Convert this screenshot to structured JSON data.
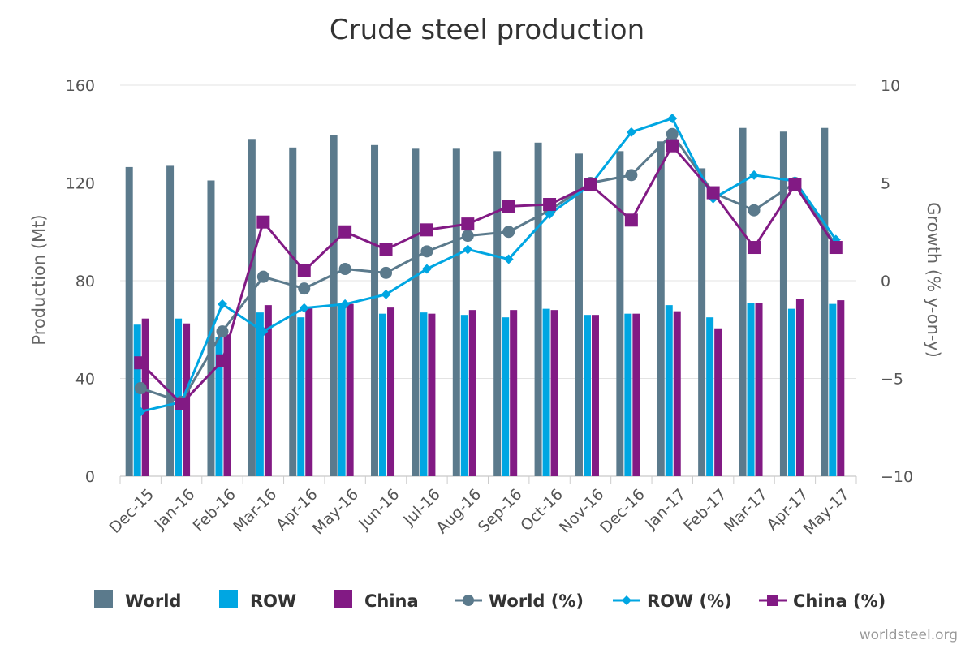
{
  "chart_data": {
    "type": "bar",
    "title": "Crude steel production",
    "ylabel": "Production (Mt)",
    "y2label": "Growth (% y-on-y)",
    "ylim": [
      0,
      160
    ],
    "y2lim": [
      -10,
      10
    ],
    "yticks": [
      "0",
      "40",
      "80",
      "120",
      "160"
    ],
    "y2ticks": [
      "−10",
      "−5",
      "0",
      "5",
      "10"
    ],
    "categories": [
      "Dec-15",
      "Jan-16",
      "Feb-16",
      "Mar-16",
      "Apr-16",
      "May-16",
      "Jun-16",
      "Jul-16",
      "Aug-16",
      "Sep-16",
      "Oct-16",
      "Nov-16",
      "Dec-16",
      "Jan-17",
      "Feb-17",
      "Mar-17",
      "Apr-17",
      "May-17"
    ],
    "bar_series": [
      {
        "name": "World",
        "color": "#5b7a8c",
        "values": [
          126.5,
          127.0,
          121.0,
          138.0,
          134.5,
          139.5,
          135.5,
          134.0,
          134.0,
          133.0,
          136.5,
          132.0,
          133.0,
          137.0,
          126.0,
          142.5,
          141.0,
          142.5
        ]
      },
      {
        "name": "ROW",
        "color": "#00a6e2",
        "values": [
          62.0,
          64.5,
          57.0,
          67.0,
          65.0,
          70.5,
          66.5,
          67.0,
          66.0,
          65.0,
          68.5,
          66.0,
          66.5,
          70.0,
          65.0,
          71.0,
          68.5,
          70.5
        ]
      },
      {
        "name": "China",
        "color": "#821a84",
        "values": [
          64.5,
          62.5,
          58.0,
          70.0,
          69.0,
          70.5,
          69.0,
          66.5,
          68.0,
          68.0,
          68.0,
          66.0,
          66.5,
          67.5,
          60.5,
          71.0,
          72.5,
          72.0
        ]
      }
    ],
    "line_series": [
      {
        "name": "World (%)",
        "color": "#5b7a8c",
        "marker": "circle",
        "values": [
          -5.5,
          -6.2,
          -2.6,
          0.2,
          -0.4,
          0.6,
          0.4,
          1.5,
          2.3,
          2.5,
          3.6,
          5.0,
          5.4,
          7.5,
          4.5,
          3.6,
          5.0,
          1.8
        ]
      },
      {
        "name": "ROW (%)",
        "color": "#00a6e2",
        "marker": "diamond",
        "values": [
          -6.7,
          -6.2,
          -1.2,
          -2.6,
          -1.4,
          -1.2,
          -0.7,
          0.6,
          1.6,
          1.1,
          3.4,
          4.9,
          7.6,
          8.3,
          4.2,
          5.4,
          5.1,
          2.1
        ]
      },
      {
        "name": "China (%)",
        "color": "#821a84",
        "marker": "square",
        "values": [
          -4.2,
          -6.3,
          -4.1,
          3.0,
          0.5,
          2.5,
          1.6,
          2.6,
          2.9,
          3.8,
          3.9,
          4.9,
          3.1,
          6.9,
          4.5,
          1.7,
          4.9,
          1.7
        ]
      }
    ],
    "legend_position": "bottom",
    "grid": true
  },
  "credit": "worldsteel.org"
}
